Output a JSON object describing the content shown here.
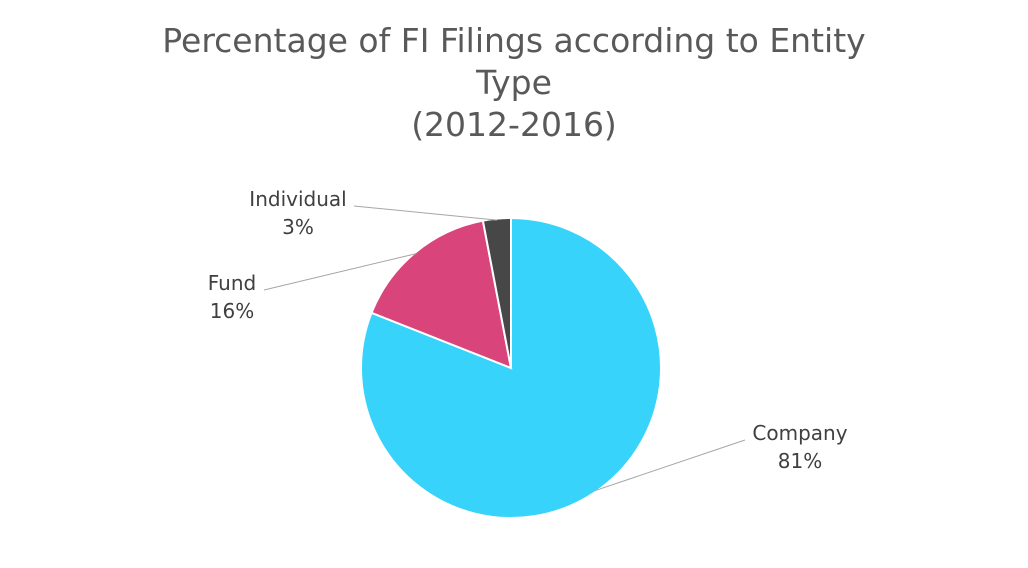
{
  "chart_data": {
    "type": "pie",
    "title": [
      "Percentage of FI Filings according to Entity",
      "Type",
      "(2012-2016)"
    ],
    "slices": [
      {
        "name": "Company",
        "value": 81,
        "label": "81%",
        "color": "#38d3fa"
      },
      {
        "name": "Fund",
        "value": 16,
        "label": "16%",
        "color": "#d9447a"
      },
      {
        "name": "Individual",
        "value": 3,
        "label": "3%",
        "color": "#474747"
      }
    ],
    "legend": "none",
    "data_labels": "outside with leader lines"
  }
}
